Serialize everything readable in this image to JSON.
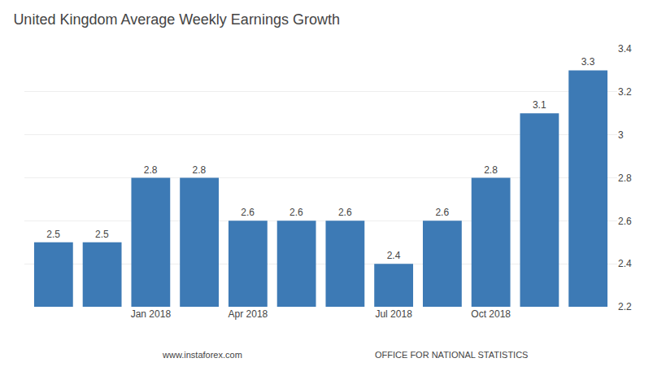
{
  "chart_data": {
    "type": "bar",
    "title": "United Kingdom Average Weekly Earnings Growth",
    "categories": [
      null,
      null,
      "Jan 2018",
      null,
      "Apr 2018",
      null,
      null,
      "Jul 2018",
      null,
      "Oct 2018",
      null,
      null
    ],
    "values": [
      2.5,
      2.5,
      2.8,
      2.8,
      2.6,
      2.6,
      2.6,
      2.4,
      2.6,
      2.8,
      3.1,
      3.3
    ],
    "color": "#3d7ab5",
    "ylim": [
      2.2,
      3.4
    ],
    "yticks": [
      2.2,
      2.4,
      2.6,
      2.8,
      3,
      3.2,
      3.4
    ],
    "grid": true,
    "data_labels": true,
    "annotations": [
      "www.instaforex.com",
      "OFFICE FOR NATIONAL STATISTICS"
    ]
  }
}
